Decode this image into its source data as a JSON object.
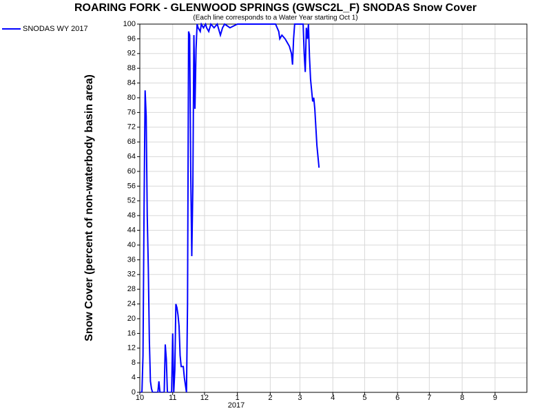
{
  "chart_data": {
    "type": "line",
    "title": "ROARING FORK - GLENWOOD SPRINGS (GWSC2L_F) SNODAS Snow Cover",
    "subtitle": "(Each line corresponds to a Water Year starting Oct 1)",
    "y_label": "Snow Cover (percent of non-waterbody basin area)",
    "x_year_label": "2017",
    "xlim": [
      0,
      365
    ],
    "xticks": [
      {
        "value": 0,
        "label": "10"
      },
      {
        "value": 31,
        "label": "11"
      },
      {
        "value": 61,
        "label": "12"
      },
      {
        "value": 92,
        "label": "1"
      },
      {
        "value": 123,
        "label": "2"
      },
      {
        "value": 151,
        "label": "3"
      },
      {
        "value": 182,
        "label": "4"
      },
      {
        "value": 212,
        "label": "5"
      },
      {
        "value": 243,
        "label": "6"
      },
      {
        "value": 273,
        "label": "7"
      },
      {
        "value": 304,
        "label": "8"
      },
      {
        "value": 335,
        "label": "9"
      }
    ],
    "ylim": [
      0,
      100
    ],
    "yticks": [
      0,
      4,
      8,
      12,
      16,
      20,
      24,
      28,
      32,
      36,
      40,
      44,
      48,
      52,
      56,
      60,
      64,
      68,
      72,
      76,
      80,
      84,
      88,
      92,
      96,
      100
    ],
    "grid": true,
    "legend": "top-left",
    "x": [
      0,
      2,
      3,
      4,
      5,
      6,
      7,
      8,
      9,
      10,
      11,
      12,
      17,
      18,
      19,
      23,
      24,
      25,
      26,
      30,
      31,
      32,
      33,
      34,
      35,
      36,
      37,
      38,
      39,
      41,
      42,
      43,
      44,
      45,
      46,
      47,
      48,
      49,
      50,
      51,
      52,
      53,
      54,
      55,
      57,
      58,
      60,
      62,
      63,
      65,
      67,
      70,
      73,
      76,
      78,
      80,
      85,
      92,
      100,
      110,
      120,
      128,
      131,
      132,
      134,
      137,
      139,
      141,
      143,
      144,
      145,
      146,
      148,
      150,
      152,
      154,
      155,
      156,
      157,
      158,
      159,
      160,
      161,
      162,
      163,
      164,
      165,
      166,
      167,
      168,
      169
    ],
    "series": [
      {
        "name": "SNODAS WY 2017",
        "color": "#0000ff",
        "values": [
          0,
          0,
          10,
          50,
          82,
          75,
          48,
          34,
          14,
          3,
          1,
          0,
          0,
          3,
          0,
          0,
          13,
          9,
          0,
          0,
          16,
          0,
          6,
          24,
          23,
          21,
          18,
          10,
          7,
          7,
          4,
          2,
          0,
          24,
          98,
          97,
          60,
          37,
          56,
          97,
          77,
          93,
          100,
          99,
          98,
          100,
          99,
          100,
          99,
          98,
          100,
          99,
          100,
          97,
          99,
          100,
          99,
          100,
          100,
          100,
          100,
          100,
          98,
          96,
          97,
          96,
          95,
          94,
          92,
          89,
          96,
          100,
          100,
          100,
          100,
          100,
          92,
          87,
          99,
          96,
          100,
          91,
          85,
          82,
          79,
          80,
          77,
          72,
          67,
          64,
          61
        ]
      }
    ]
  }
}
